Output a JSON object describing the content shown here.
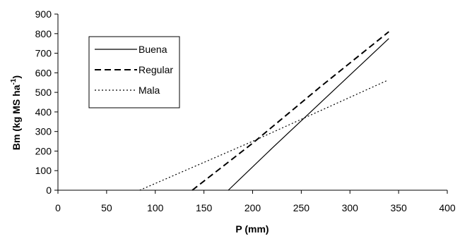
{
  "chart_data": {
    "type": "line",
    "title": "",
    "xlabel": "P (mm)",
    "ylabel_main": "Bm (kg MS ha",
    "ylabel_sup": "-1",
    "ylabel_close": ")",
    "xlim": [
      0,
      400
    ],
    "ylim": [
      0,
      900
    ],
    "xticks": [
      0,
      50,
      100,
      150,
      200,
      250,
      300,
      350,
      400
    ],
    "yticks": [
      0,
      100,
      200,
      300,
      400,
      500,
      600,
      700,
      800,
      900
    ],
    "grid": false,
    "legend_position": "top-left",
    "series": [
      {
        "name": "Buena",
        "style": "solid",
        "color": "#000000",
        "x": [
          175,
          220,
          340
        ],
        "y": [
          0,
          215,
          775
        ]
      },
      {
        "name": "Regular",
        "style": "dashed",
        "color": "#000000",
        "x": [
          138,
          200,
          270,
          340
        ],
        "y": [
          0,
          240,
          530,
          810
        ]
      },
      {
        "name": "Mala",
        "style": "dotted",
        "color": "#000000",
        "x": [
          84,
          200,
          338
        ],
        "y": [
          0,
          250,
          560
        ]
      }
    ]
  }
}
